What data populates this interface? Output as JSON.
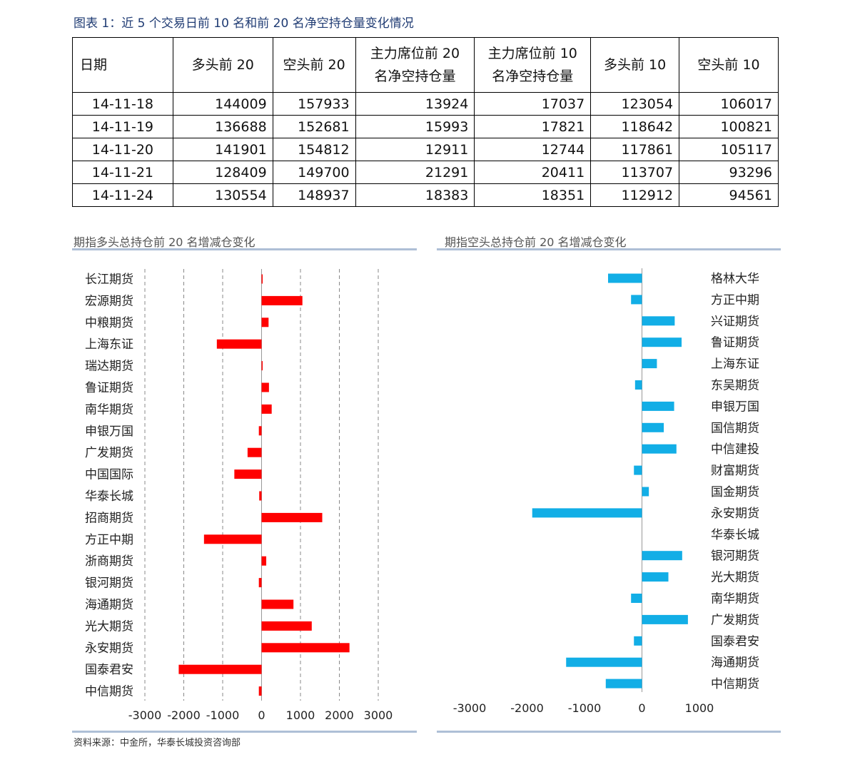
{
  "caption": "图表 1：近 5 个交易日前 10 名和前 20 名净空持仓量变化情况",
  "table": {
    "headers": [
      "日期",
      "多头前 20",
      "空头前 20",
      "主力席位前 20 名净空持仓量",
      "主力席位前 10 名净空持仓量",
      "多头前 10",
      "空头前 10"
    ],
    "rows": [
      [
        "14-11-18",
        "144009",
        "157933",
        "13924",
        "17037",
        "123054",
        "106017"
      ],
      [
        "14-11-19",
        "136688",
        "152681",
        "15993",
        "17821",
        "118642",
        "100821"
      ],
      [
        "14-11-20",
        "141901",
        "154812",
        "12911",
        "12744",
        "117861",
        "105117"
      ],
      [
        "14-11-21",
        "128409",
        "149700",
        "21291",
        "20411",
        "113707",
        "93296"
      ],
      [
        "14-11-24",
        "130554",
        "148937",
        "18383",
        "18351",
        "112912",
        "94561"
      ]
    ]
  },
  "charts": {
    "left_title": "期指多头总持仓前 20 名增减仓变化",
    "right_title": "期指空头总持仓前 20 名增减仓变化"
  },
  "source": "资料来源：中金所，华泰长城投资咨询部",
  "chart_data": [
    {
      "type": "bar",
      "orientation": "horizontal",
      "title": "期指多头总持仓前 20 名增减仓变化",
      "color": "#ff0000",
      "categories": [
        "长江期货",
        "宏源期货",
        "中粮期货",
        "上海东证",
        "瑞达期货",
        "鲁证期货",
        "南华期货",
        "申银万国",
        "广发期货",
        "中国国际",
        "华泰长城",
        "招商期货",
        "方正中期",
        "浙商期货",
        "银河期货",
        "海通期货",
        "光大期货",
        "永安期货",
        "国泰君安",
        "中信期货"
      ],
      "values": [
        20,
        1050,
        180,
        1150,
        10,
        190,
        260,
        70,
        360,
        700,
        60,
        1560,
        1480,
        120,
        70,
        820,
        1290,
        2260,
        2130,
        70
      ],
      "signs": [
        1,
        1,
        1,
        -1,
        1,
        1,
        1,
        -1,
        -1,
        -1,
        -1,
        1,
        -1,
        1,
        -1,
        1,
        1,
        1,
        -1,
        -1
      ],
      "xlim": [
        -3000,
        3000
      ],
      "xticks": [
        "-3000",
        "-2000",
        "-1000",
        "0",
        "1000",
        "2000",
        "3000"
      ],
      "grid": true
    },
    {
      "type": "bar",
      "orientation": "horizontal",
      "title": "期指空头总持仓前 20 名增减仓变化",
      "color": "#12aee6",
      "categories": [
        "格林大华",
        "方正中期",
        "兴证期货",
        "鲁证期货",
        "上海东证",
        "东吴期货",
        "申银万国",
        "国信期货",
        "中信建投",
        "财富期货",
        "国金期货",
        "永安期货",
        "华泰长城",
        "银河期货",
        "光大期货",
        "南华期货",
        "广发期货",
        "国泰君安",
        "海通期货",
        "中信期货"
      ],
      "values": [
        -590,
        -190,
        570,
        690,
        260,
        -120,
        560,
        380,
        600,
        -140,
        120,
        -1910,
        0,
        700,
        460,
        -190,
        800,
        -140,
        -1320,
        -630
      ],
      "xlim": [
        -3000,
        1000
      ],
      "xticks": [
        "-3000",
        "-2000",
        "-1000",
        "0",
        "1000"
      ],
      "grid": false
    }
  ]
}
